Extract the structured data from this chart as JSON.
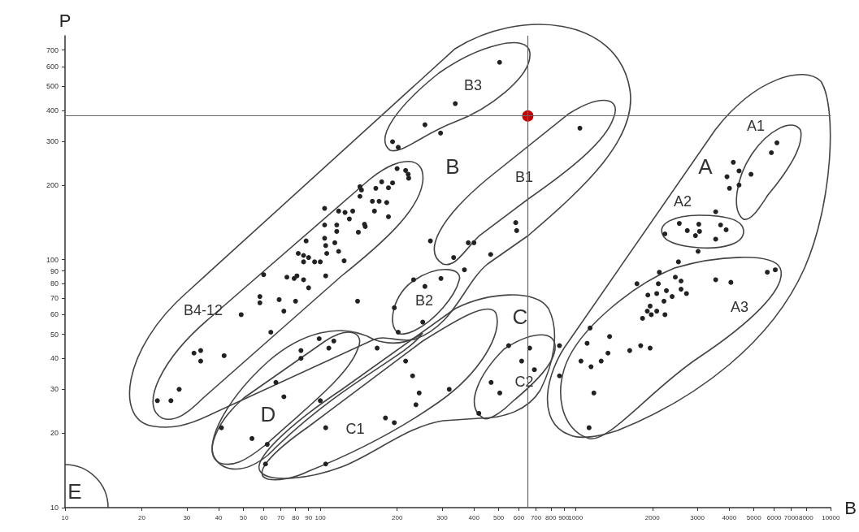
{
  "chart_data": {
    "type": "scatter",
    "xlabel": "B",
    "ylabel": "P",
    "log": "xy",
    "marker": "circle",
    "xlim": [
      10,
      10000
    ],
    "xticks": [
      10,
      20,
      30,
      40,
      50,
      60,
      70,
      80,
      90,
      100,
      200,
      300,
      400,
      500,
      600,
      700,
      800,
      900,
      1000,
      2000,
      3000,
      4000,
      5000,
      6000,
      7000,
      8000,
      10000
    ],
    "ylim": [
      10,
      800
    ],
    "yticks": [
      10,
      20,
      30,
      40,
      50,
      60,
      70,
      80,
      90,
      100,
      200,
      300,
      400,
      500,
      600,
      700
    ],
    "series": [
      {
        "color": "#222222",
        "x": [
          504,
          338,
          257,
          296,
          192,
          202,
          583,
          588,
          380,
          400,
          270,
          333,
          465,
          367,
          1040,
          200,
          216,
          221,
          222,
          143,
          145,
          165,
          174,
          185,
          192,
          143,
          160,
          170,
          182,
          163,
          185,
          149,
          150,
          141,
          118,
          125,
          134,
          130,
          104,
          104,
          116,
          116,
          104,
          105,
          106,
          114,
          118,
          124,
          88,
          82,
          86,
          90,
          86,
          95,
          100,
          105,
          74,
          79,
          86,
          90,
          81,
          69,
          80,
          72,
          140,
          60,
          58,
          58,
          49,
          64,
          32,
          34,
          34,
          42,
          28,
          23,
          26,
          232,
          297,
          257,
          195,
          252,
          202,
          41,
          54,
          62,
          67,
          72,
          84,
          84,
          99,
          108,
          113,
          100,
          61,
          105,
          105,
          167,
          216,
          230,
          244,
          237,
          320,
          180,
          195,
          547,
          615,
          661,
          690,
          467,
          505,
          418,
          5640,
          6060,
          3540,
          4060,
          1740,
          2110,
          2130,
          2530,
          2460,
          2590,
          1920,
          2080,
          2270,
          2390,
          2590,
          2720,
          2220,
          1960,
          1910,
          1980,
          2080,
          2240,
          1830,
          1800,
          1960,
          1630,
          1360,
          1340,
          1260,
          1140,
          1110,
          1050,
          1150,
          1180,
          1130,
          865,
          865,
          2550,
          2240,
          2740,
          2950,
          3040,
          3060,
          3700,
          3890,
          3540,
          3020,
          3540,
          6150,
          5850,
          4150,
          4370,
          4870,
          3920,
          4370,
          4010
        ],
        "values": [
          625,
          426,
          350,
          324,
          299,
          284,
          141,
          131,
          117,
          117,
          119,
          102,
          105,
          91,
          339,
          233,
          229,
          221,
          213,
          197,
          191,
          194,
          206,
          195,
          204,
          180,
          172,
          172,
          170,
          157,
          149,
          139,
          136,
          129,
          157,
          155,
          157,
          146,
          161,
          138,
          138,
          130,
          122,
          114,
          106,
          117,
          108,
          99,
          119,
          106,
          104,
          102,
          98,
          98,
          98,
          86,
          85,
          84,
          83,
          77,
          86,
          69,
          68,
          62,
          68,
          87,
          71,
          67,
          60,
          51,
          42,
          43,
          39,
          41,
          30,
          27,
          27,
          83,
          84,
          78,
          64,
          56,
          51,
          21,
          19,
          18,
          32,
          28,
          43,
          40,
          48,
          44,
          47,
          27,
          15,
          21,
          15,
          44,
          39,
          34,
          29,
          26,
          30,
          23,
          22,
          45,
          39,
          44,
          36,
          32,
          29,
          24,
          89,
          91,
          83,
          81,
          80,
          80,
          89,
          98,
          85,
          82,
          72,
          73,
          75,
          71,
          76,
          73,
          68,
          65,
          62,
          60,
          62,
          60,
          58,
          45,
          44,
          43,
          49,
          42,
          39,
          53,
          46,
          39,
          37,
          29,
          21,
          45,
          34,
          140,
          127,
          131,
          125,
          139,
          130,
          138,
          132,
          121,
          108,
          156,
          296,
          270,
          247,
          228,
          221,
          216,
          200,
          194
        ]
      },
      {
        "color": "#c00000",
        "x": [
          650
        ],
        "values": [
          380
        ]
      }
    ],
    "ref_lines": [
      {
        "axis": "y",
        "value": 380,
        "color": "#666666"
      },
      {
        "axis": "x",
        "value": 650,
        "color": "#666666"
      }
    ],
    "annotations": [
      "A",
      "A1",
      "A2",
      "A3",
      "B",
      "B1",
      "B2",
      "B3",
      "B4-12",
      "C",
      "C1",
      "C2",
      "D",
      "E"
    ]
  }
}
